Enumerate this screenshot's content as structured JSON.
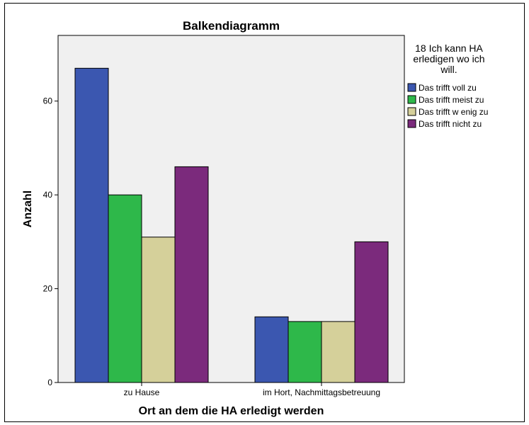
{
  "chart_data": {
    "type": "bar",
    "title": "Balkendiagramm",
    "xlabel": "Ort an dem die HA erledigt werden",
    "ylabel": "Anzahl",
    "categories": [
      "zu Hause",
      "im Hort, Nachmittagsbetreuung"
    ],
    "series": [
      {
        "name": "Das trifft voll zu",
        "color": "#3b57b0",
        "values": [
          67,
          14
        ]
      },
      {
        "name": "Das trifft meist zu",
        "color": "#2eb84a",
        "values": [
          40,
          13
        ]
      },
      {
        "name": "Das trifft w enig zu",
        "color": "#d5d09a",
        "values": [
          31,
          13
        ]
      },
      {
        "name": "Das trifft nicht zu",
        "color": "#7b2a7c",
        "values": [
          46,
          30
        ]
      }
    ],
    "ylim": [
      0,
      74
    ],
    "yticks": [
      0,
      20,
      40,
      60
    ],
    "legend_title_lines": [
      "18 Ich kann HA",
      "erledigen wo ich",
      "will."
    ],
    "legend_position": "right",
    "plot_background": "#f0f0f0",
    "grid": false
  }
}
